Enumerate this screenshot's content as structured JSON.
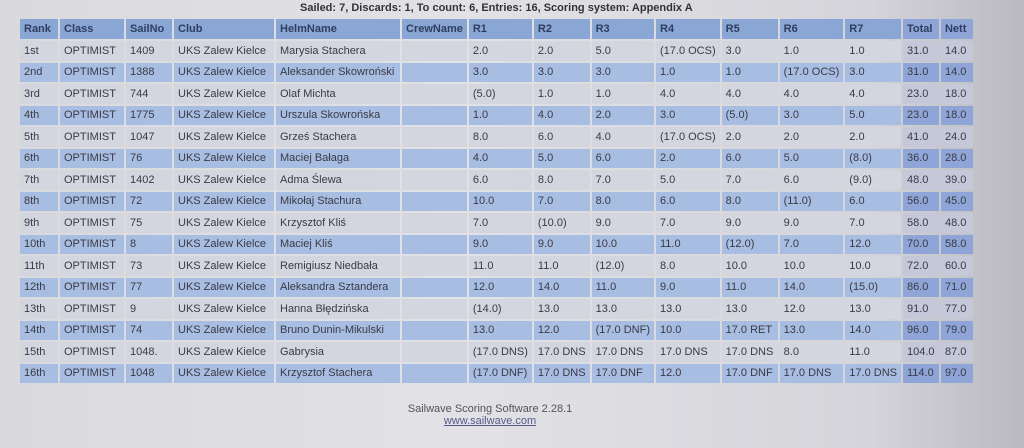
{
  "subtitle": "Sailed: 7, Discards: 1, To count: 6, Entries: 16, Scoring system: Appendix A",
  "columns": [
    "Rank",
    "Class",
    "SailNo",
    "Club",
    "HelmName",
    "CrewName",
    "R1",
    "R2",
    "R3",
    "R4",
    "R5",
    "R6",
    "R7",
    "Total",
    "Nett"
  ],
  "rows": [
    [
      "1st",
      "OPTIMIST",
      "1409",
      "UKS Zalew Kielce",
      "Marysia Stachera",
      "",
      "2.0",
      "2.0",
      "5.0",
      "(17.0 OCS)",
      "3.0",
      "1.0",
      "1.0",
      "31.0",
      "14.0"
    ],
    [
      "2nd",
      "OPTIMIST",
      "1388",
      "UKS Zalew Kielce",
      "Aleksander Skowroński",
      "",
      "3.0",
      "3.0",
      "3.0",
      "1.0",
      "1.0",
      "(17.0 OCS)",
      "3.0",
      "31.0",
      "14.0"
    ],
    [
      "3rd",
      "OPTIMIST",
      "744",
      "UKS Zalew Kielce",
      "Olaf Michta",
      "",
      "(5.0)",
      "1.0",
      "1.0",
      "4.0",
      "4.0",
      "4.0",
      "4.0",
      "23.0",
      "18.0"
    ],
    [
      "4th",
      "OPTIMIST",
      "1775",
      "UKS Zalew Kielce",
      "Urszula Skowrońska",
      "",
      "1.0",
      "4.0",
      "2.0",
      "3.0",
      "(5.0)",
      "3.0",
      "5.0",
      "23.0",
      "18.0"
    ],
    [
      "5th",
      "OPTIMIST",
      "1047",
      "UKS Zalew Kielce",
      "Grześ Stachera",
      "",
      "8.0",
      "6.0",
      "4.0",
      "(17.0 OCS)",
      "2.0",
      "2.0",
      "2.0",
      "41.0",
      "24.0"
    ],
    [
      "6th",
      "OPTIMIST",
      "76",
      "UKS Zalew Kielce",
      "Maciej Bałaga",
      "",
      "4.0",
      "5.0",
      "6.0",
      "2.0",
      "6.0",
      "5.0",
      "(8.0)",
      "36.0",
      "28.0"
    ],
    [
      "7th",
      "OPTIMIST",
      "1402",
      "UKS Zalew Kielce",
      "Adma Ślewa",
      "",
      "6.0",
      "8.0",
      "7.0",
      "5.0",
      "7.0",
      "6.0",
      "(9.0)",
      "48.0",
      "39.0"
    ],
    [
      "8th",
      "OPTIMIST",
      "72",
      "UKS Zalew Kielce",
      "Mikołaj Stachura",
      "",
      "10.0",
      "7.0",
      "8.0",
      "6.0",
      "8.0",
      "(11.0)",
      "6.0",
      "56.0",
      "45.0"
    ],
    [
      "9th",
      "OPTIMIST",
      "75",
      "UKS Zalew Kielce",
      "Krzysztof Kliś",
      "",
      "7.0",
      "(10.0)",
      "9.0",
      "7.0",
      "9.0",
      "9.0",
      "7.0",
      "58.0",
      "48.0"
    ],
    [
      "10th",
      "OPTIMIST",
      "8",
      "UKS Zalew Kielce",
      "Maciej Kliś",
      "",
      "9.0",
      "9.0",
      "10.0",
      "11.0",
      "(12.0)",
      "7.0",
      "12.0",
      "70.0",
      "58.0"
    ],
    [
      "11th",
      "OPTIMIST",
      "73",
      "UKS Zalew Kielce",
      "Remigiusz Niedbała",
      "",
      "11.0",
      "11.0",
      "(12.0)",
      "8.0",
      "10.0",
      "10.0",
      "10.0",
      "72.0",
      "60.0"
    ],
    [
      "12th",
      "OPTIMIST",
      "77",
      "UKS Zalew Kielce",
      "Aleksandra Sztandera",
      "",
      "12.0",
      "14.0",
      "11.0",
      "9.0",
      "11.0",
      "14.0",
      "(15.0)",
      "86.0",
      "71.0"
    ],
    [
      "13th",
      "OPTIMIST",
      "9",
      "UKS Zalew Kielce",
      "Hanna Błędzińska",
      "",
      "(14.0)",
      "13.0",
      "13.0",
      "13.0",
      "13.0",
      "12.0",
      "13.0",
      "91.0",
      "77.0"
    ],
    [
      "14th",
      "OPTIMIST",
      "74",
      "UKS Zalew Kielce",
      "Bruno Dunin-Mikulski",
      "",
      "13.0",
      "12.0",
      "(17.0 DNF)",
      "10.0",
      "17.0 RET",
      "13.0",
      "14.0",
      "96.0",
      "79.0"
    ],
    [
      "15th",
      "OPTIMIST",
      "1048.",
      "UKS Zalew Kielce",
      "Gabrysia",
      "",
      "(17.0 DNS)",
      "17.0 DNS",
      "17.0 DNS",
      "17.0 DNS",
      "17.0 DNS",
      "8.0",
      "11.0",
      "104.0",
      "87.0"
    ],
    [
      "16th",
      "OPTIMIST",
      "1048",
      "UKS Zalew Kielce",
      "Krzysztof Stachera",
      "",
      "(17.0 DNF)",
      "17.0 DNS",
      "17.0 DNF",
      "12.0",
      "17.0 DNF",
      "17.0 DNS",
      "17.0 DNS",
      "114.0",
      "97.0"
    ]
  ],
  "footer": {
    "software": "Sailwave Scoring Software 2.28.1",
    "link": "www.sailwave.com"
  },
  "colors": {
    "header": "#8aa6d4",
    "row_even": "#a8bde2",
    "row_odd": "#d3d6df"
  }
}
